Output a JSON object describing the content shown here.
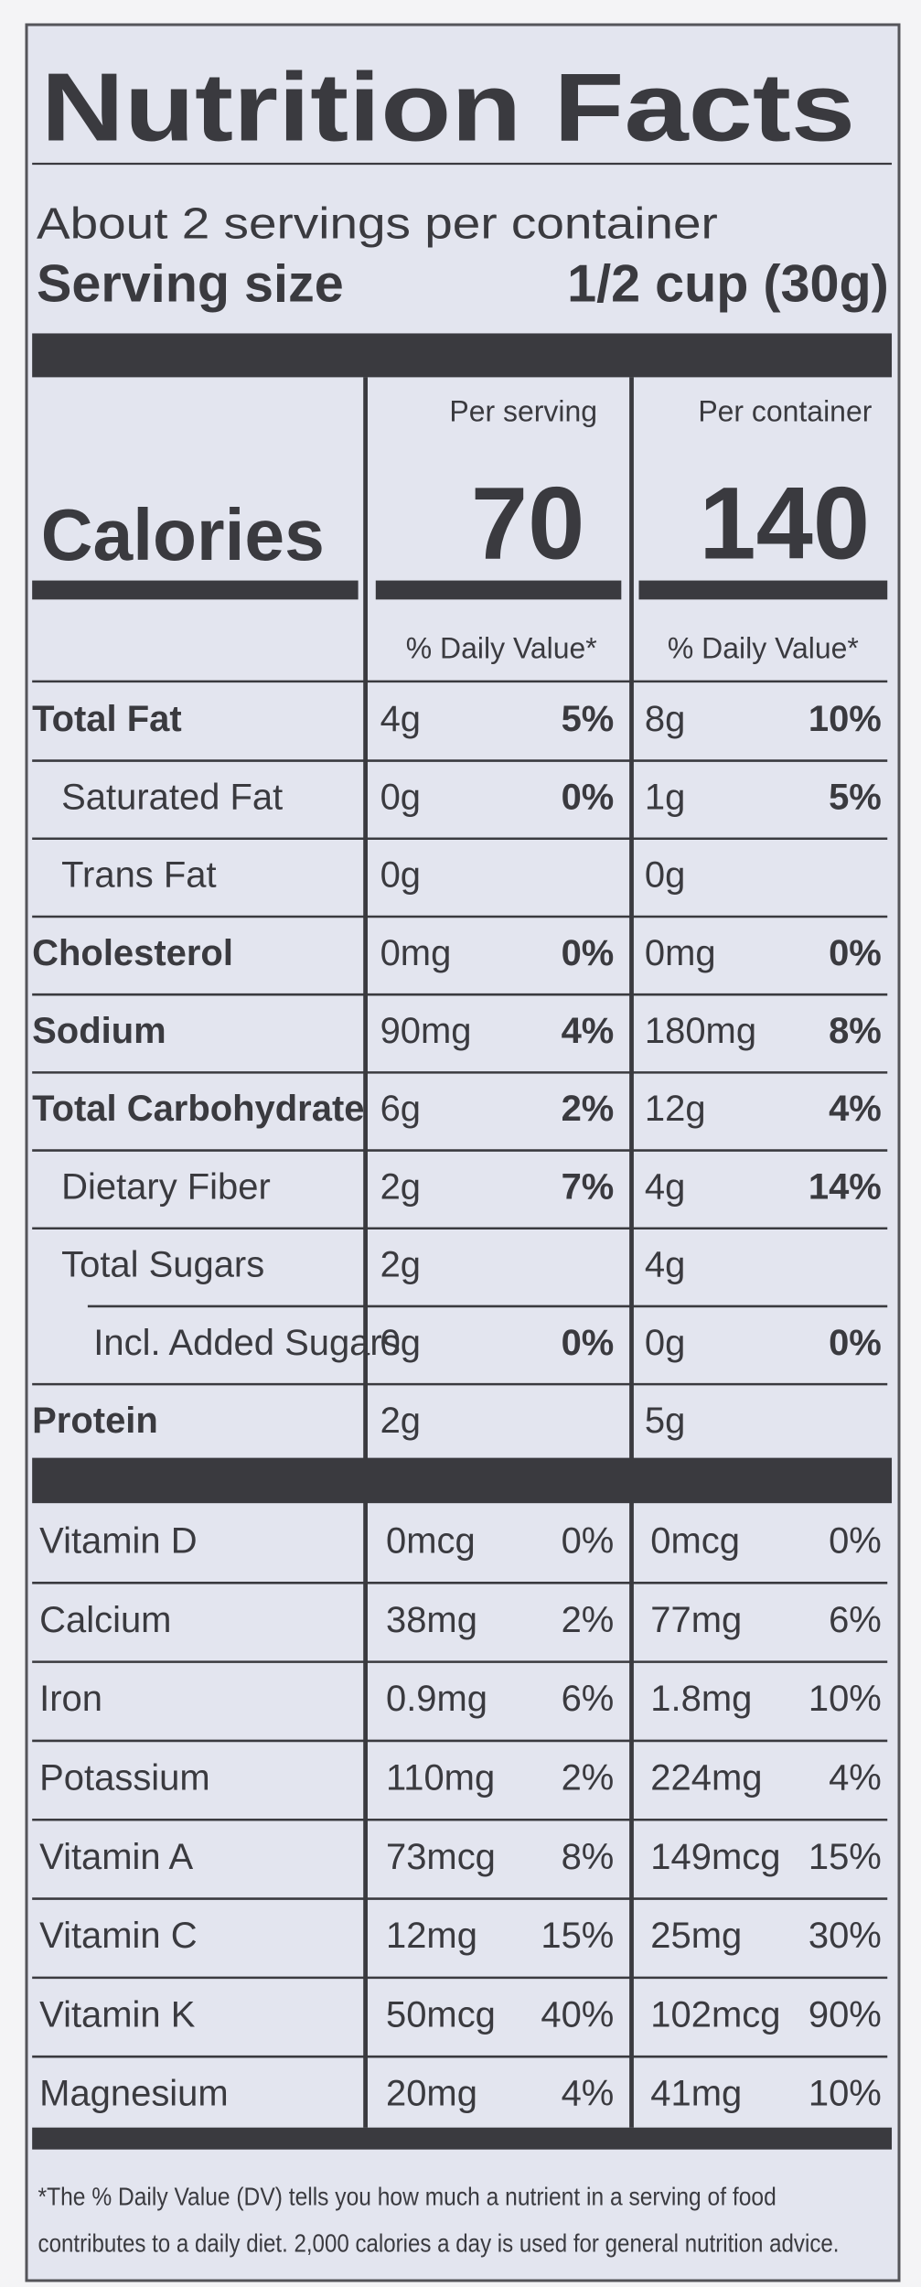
{
  "header": {
    "title": "Nutrition Facts",
    "servings": "About 2 servings per container",
    "serving_size_label": "Serving size",
    "serving_size": "1/2 cup (30g)"
  },
  "calories": {
    "label": "Calories",
    "columns": [
      {
        "heading": "Per serving",
        "value": "70",
        "dv_heading": "% Daily Value*"
      },
      {
        "heading": "Per container",
        "value": "140",
        "dv_heading": "% Daily Value*"
      }
    ]
  },
  "nutrients": [
    {
      "name": "Total Fat",
      "bold": true,
      "indent": 0,
      "values": [
        [
          "4g",
          "5%"
        ],
        [
          "8g",
          "10%"
        ]
      ]
    },
    {
      "name": "Saturated Fat",
      "bold": false,
      "indent": 1,
      "values": [
        [
          "0g",
          "0%"
        ],
        [
          "1g",
          "5%"
        ]
      ]
    },
    {
      "name": "Trans Fat",
      "bold": false,
      "indent": 1,
      "values": [
        [
          "0g"
        ],
        [
          "0g"
        ]
      ]
    },
    {
      "name": "Cholesterol",
      "bold": true,
      "indent": 0,
      "values": [
        [
          "0mg",
          "0%"
        ],
        [
          "0mg",
          "0%"
        ]
      ]
    },
    {
      "name": "Sodium",
      "bold": true,
      "indent": 0,
      "values": [
        [
          "90mg",
          "4%"
        ],
        [
          "180mg",
          "8%"
        ]
      ]
    },
    {
      "name": "Total Carbohydrate",
      "bold": true,
      "indent": 0,
      "values": [
        [
          "6g",
          "2%"
        ],
        [
          "12g",
          "4%"
        ]
      ]
    },
    {
      "name": "Dietary Fiber",
      "bold": false,
      "indent": 1,
      "values": [
        [
          "2g",
          "7%"
        ],
        [
          "4g",
          "14%"
        ]
      ]
    },
    {
      "name": "Total Sugars",
      "bold": false,
      "indent": 1,
      "values": [
        [
          "2g"
        ],
        [
          "4g"
        ]
      ]
    },
    {
      "name": "Incl. Added Sugars",
      "bold": false,
      "indent": 2,
      "values": [
        [
          "0g",
          "0%"
        ],
        [
          "0g",
          "0%"
        ]
      ]
    },
    {
      "name": "Protein",
      "bold": true,
      "indent": 0,
      "values": [
        [
          "2g"
        ],
        [
          "5g"
        ]
      ]
    }
  ],
  "vitamins": [
    {
      "name": "Vitamin D",
      "values": [
        [
          "0mcg",
          "0%"
        ],
        [
          "0mcg",
          "0%"
        ]
      ]
    },
    {
      "name": "Calcium",
      "values": [
        [
          "38mg",
          "2%"
        ],
        [
          "77mg",
          "6%"
        ]
      ]
    },
    {
      "name": "Iron",
      "values": [
        [
          "0.9mg",
          "6%"
        ],
        [
          "1.8mg",
          "10%"
        ]
      ]
    },
    {
      "name": "Potassium",
      "values": [
        [
          "110mg",
          "2%"
        ],
        [
          "224mg",
          "4%"
        ]
      ]
    },
    {
      "name": "Vitamin A",
      "values": [
        [
          "73mcg",
          "8%"
        ],
        [
          "149mcg",
          "15%"
        ]
      ]
    },
    {
      "name": "Vitamin C",
      "values": [
        [
          "12mg",
          "15%"
        ],
        [
          "25mg",
          "30%"
        ]
      ]
    },
    {
      "name": "Vitamin K",
      "values": [
        [
          "50mcg",
          "40%"
        ],
        [
          "102mcg",
          "90%"
        ]
      ]
    },
    {
      "name": "Magnesium",
      "values": [
        [
          "20mg",
          "4%"
        ],
        [
          "41mg",
          "10%"
        ]
      ]
    }
  ],
  "footnote": [
    "*The % Daily Value (DV) tells you how much a nutrient in a serving of food",
    "contributes to a daily diet. 2,000 calories a day is used for general nutrition advice."
  ]
}
